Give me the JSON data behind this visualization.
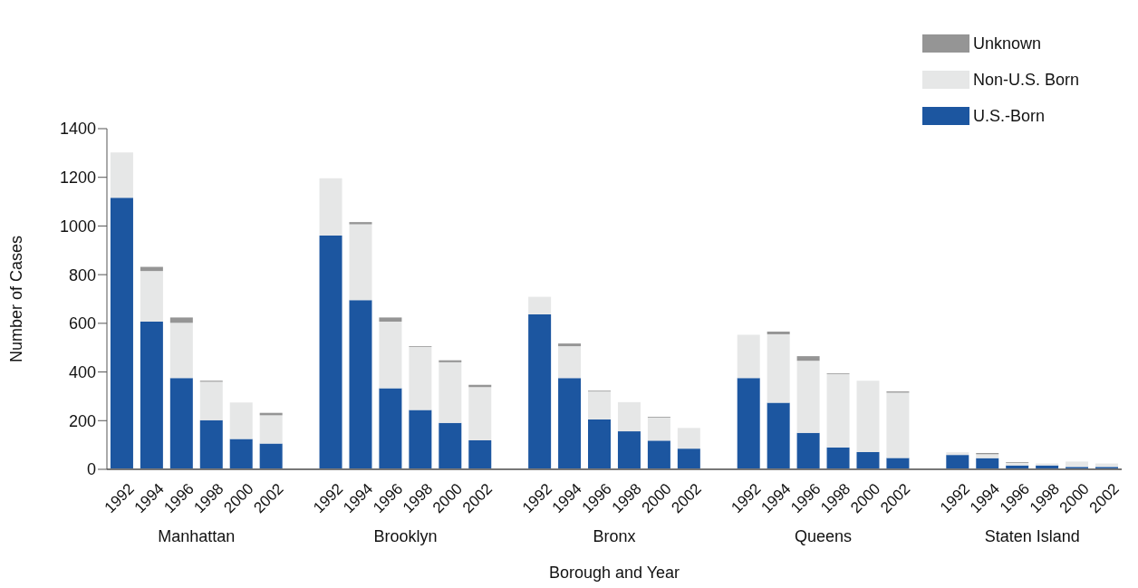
{
  "chart_data": {
    "type": "bar",
    "stacked": true,
    "xlabel": "Borough and Year",
    "ylabel": "Number of Cases",
    "categories": [
      "1992",
      "1994",
      "1996",
      "1998",
      "2000",
      "2002",
      null,
      "1992",
      "1994",
      "1996",
      "1998",
      "2000",
      "2002",
      null,
      "1992",
      "1994",
      "1996",
      "1998",
      "2000",
      "2002",
      null,
      "1992",
      "1994",
      "1996",
      "1998",
      "2000",
      "2002",
      null,
      "1992",
      "1994",
      "1996",
      "1998",
      "2000",
      "2002"
    ],
    "series": [
      {
        "name": "U.S.-Born",
        "color": "#1c56a0",
        "values": [
          1116,
          607,
          375,
          202,
          125,
          106,
          null,
          961,
          695,
          333,
          244,
          191,
          119,
          null,
          637,
          375,
          205,
          156,
          118,
          85,
          null,
          375,
          274,
          150,
          90,
          71,
          47,
          null,
          59,
          46,
          16,
          16,
          10,
          10
        ]
      },
      {
        "name": "Non-U.S. Born",
        "color": "#e6e7e7",
        "values": [
          186,
          208,
          227,
          158,
          150,
          116,
          null,
          235,
          312,
          274,
          259,
          249,
          219,
          null,
          72,
          131,
          115,
          120,
          95,
          85,
          null,
          178,
          281,
          296,
          301,
          293,
          268,
          null,
          11,
          16,
          10,
          8,
          22,
          14
        ]
      },
      {
        "name": "Unknown",
        "color": "#959595",
        "values": [
          0,
          17,
          22,
          4,
          0,
          10,
          null,
          0,
          9,
          17,
          3,
          8,
          9,
          null,
          0,
          11,
          3,
          0,
          3,
          0,
          null,
          0,
          11,
          19,
          3,
          0,
          5,
          null,
          0,
          5,
          3,
          0,
          0,
          0
        ]
      }
    ],
    "annotations": [
      "Manhattan",
      "Brooklyn",
      "Bronx",
      "Queens",
      "Staten Island"
    ],
    "ylim": [
      0,
      1400
    ],
    "yticks": [
      0,
      200,
      400,
      600,
      800,
      1000,
      1200,
      1400
    ],
    "grid": false,
    "legend": "top right"
  }
}
